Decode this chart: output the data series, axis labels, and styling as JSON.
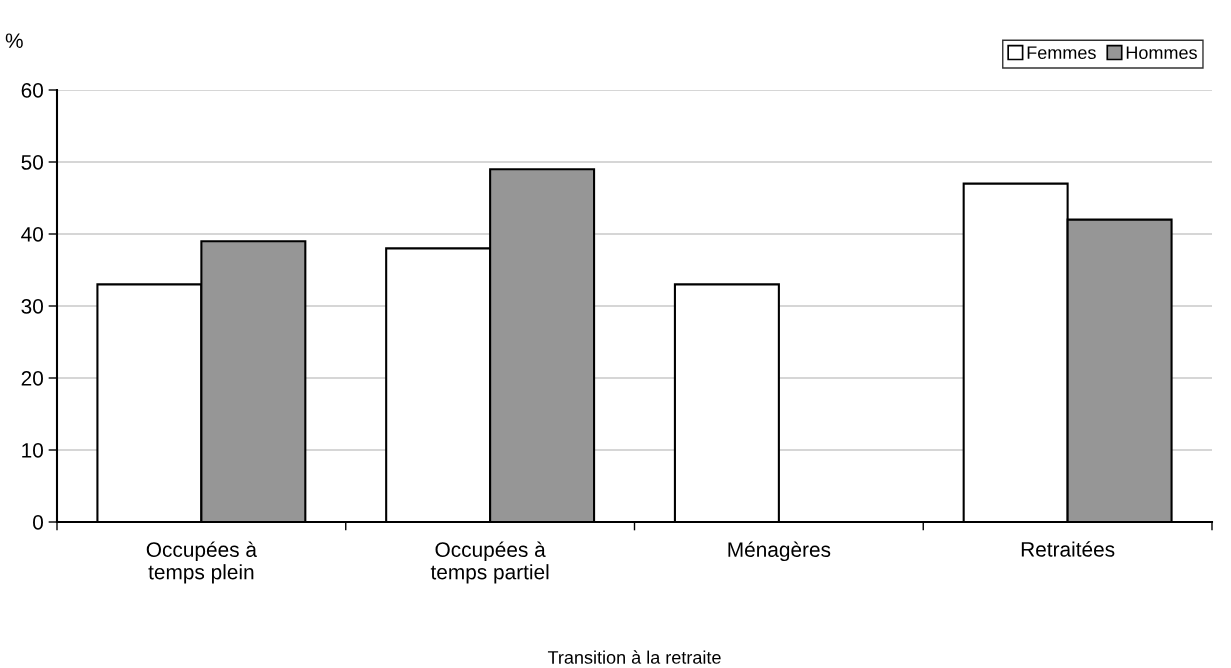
{
  "chart_data": {
    "type": "bar",
    "ylabel": "%",
    "xlabel": "Transition à la retraite",
    "categories": [
      "Occupées à\ntemps plein",
      "Occupées à\ntemps partiel",
      "Ménagères",
      "Retraitées"
    ],
    "series": [
      {
        "name": "Femmes",
        "color": "#ffffff",
        "values": [
          33,
          38,
          33,
          47
        ]
      },
      {
        "name": "Hommes",
        "color": "#969696",
        "values": [
          39,
          49,
          null,
          42
        ]
      }
    ],
    "ylim": [
      0,
      60
    ],
    "yticks": [
      0,
      10,
      20,
      30,
      40,
      50,
      60
    ],
    "grid": "y",
    "legend": "top right"
  }
}
